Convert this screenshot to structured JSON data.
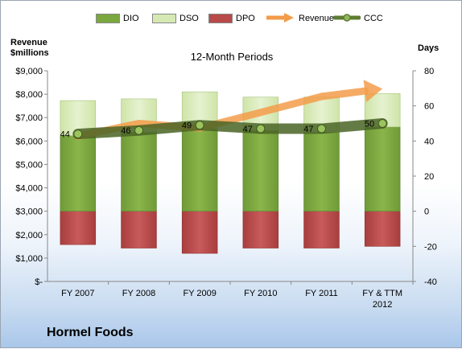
{
  "legend": {
    "items": [
      {
        "label": "DIO",
        "color": "#7aa73e",
        "icon": "bar-swatch"
      },
      {
        "label": "DSO",
        "color": "#d6e9b5",
        "icon": "bar-swatch"
      },
      {
        "label": "DPO",
        "color": "#b94a4a",
        "icon": "bar-swatch"
      },
      {
        "label": "Revenue",
        "color": "#f39c4a",
        "icon": "arrow-swatch"
      },
      {
        "label": "CCC",
        "color": "#5e7d32",
        "icon": "line-marker-swatch"
      }
    ]
  },
  "left_axis_title": "Revenue\n$millions",
  "right_axis_title": "Days",
  "company": "Hormel Foods",
  "chart_data": {
    "type": "bar",
    "title": "12-Month Periods",
    "categories": [
      "FY 2007",
      "FY 2008",
      "FY 2009",
      "FY 2010",
      "FY 2011",
      "FY & TTM 2012"
    ],
    "left_axis": {
      "label": "Revenue $millions",
      "ylim": [
        0,
        9000
      ],
      "ticks": [
        {
          "value": 0,
          "label": "$-"
        },
        {
          "value": 1000,
          "label": "$1,000"
        },
        {
          "value": 2000,
          "label": "$2,000"
        },
        {
          "value": 3000,
          "label": "$3,000"
        },
        {
          "value": 4000,
          "label": "$4,000"
        },
        {
          "value": 5000,
          "label": "$5,000"
        },
        {
          "value": 6000,
          "label": "$6,000"
        },
        {
          "value": 7000,
          "label": "$7,000"
        },
        {
          "value": 8000,
          "label": "$8,000"
        },
        {
          "value": 9000,
          "label": "$9,000"
        }
      ]
    },
    "right_axis": {
      "label": "Days",
      "ylim": [
        -40,
        80
      ],
      "ticks": [
        -40,
        -20,
        0,
        20,
        40,
        60,
        80
      ]
    },
    "series": [
      {
        "name": "DIO",
        "axis": "right",
        "type": "stacked-bar",
        "values": [
          43,
          45,
          47,
          46,
          45,
          48
        ]
      },
      {
        "name": "DSO",
        "axis": "right",
        "type": "stacked-bar",
        "values": [
          20,
          19,
          21,
          19,
          20,
          19
        ]
      },
      {
        "name": "DPO",
        "axis": "right",
        "type": "negative-bar",
        "values": [
          -19,
          -21,
          -24,
          -21,
          -21,
          -20
        ]
      },
      {
        "name": "Revenue",
        "axis": "left",
        "type": "arrow",
        "values": [
          6200,
          6750,
          6550,
          7220,
          7900,
          8230
        ]
      },
      {
        "name": "CCC",
        "axis": "right",
        "type": "line",
        "values": [
          44,
          46,
          49,
          47,
          47,
          50
        ],
        "labels": [
          "44",
          "46",
          "49",
          "47",
          "47",
          "50"
        ]
      }
    ],
    "grid": false,
    "legend_position": "top"
  }
}
